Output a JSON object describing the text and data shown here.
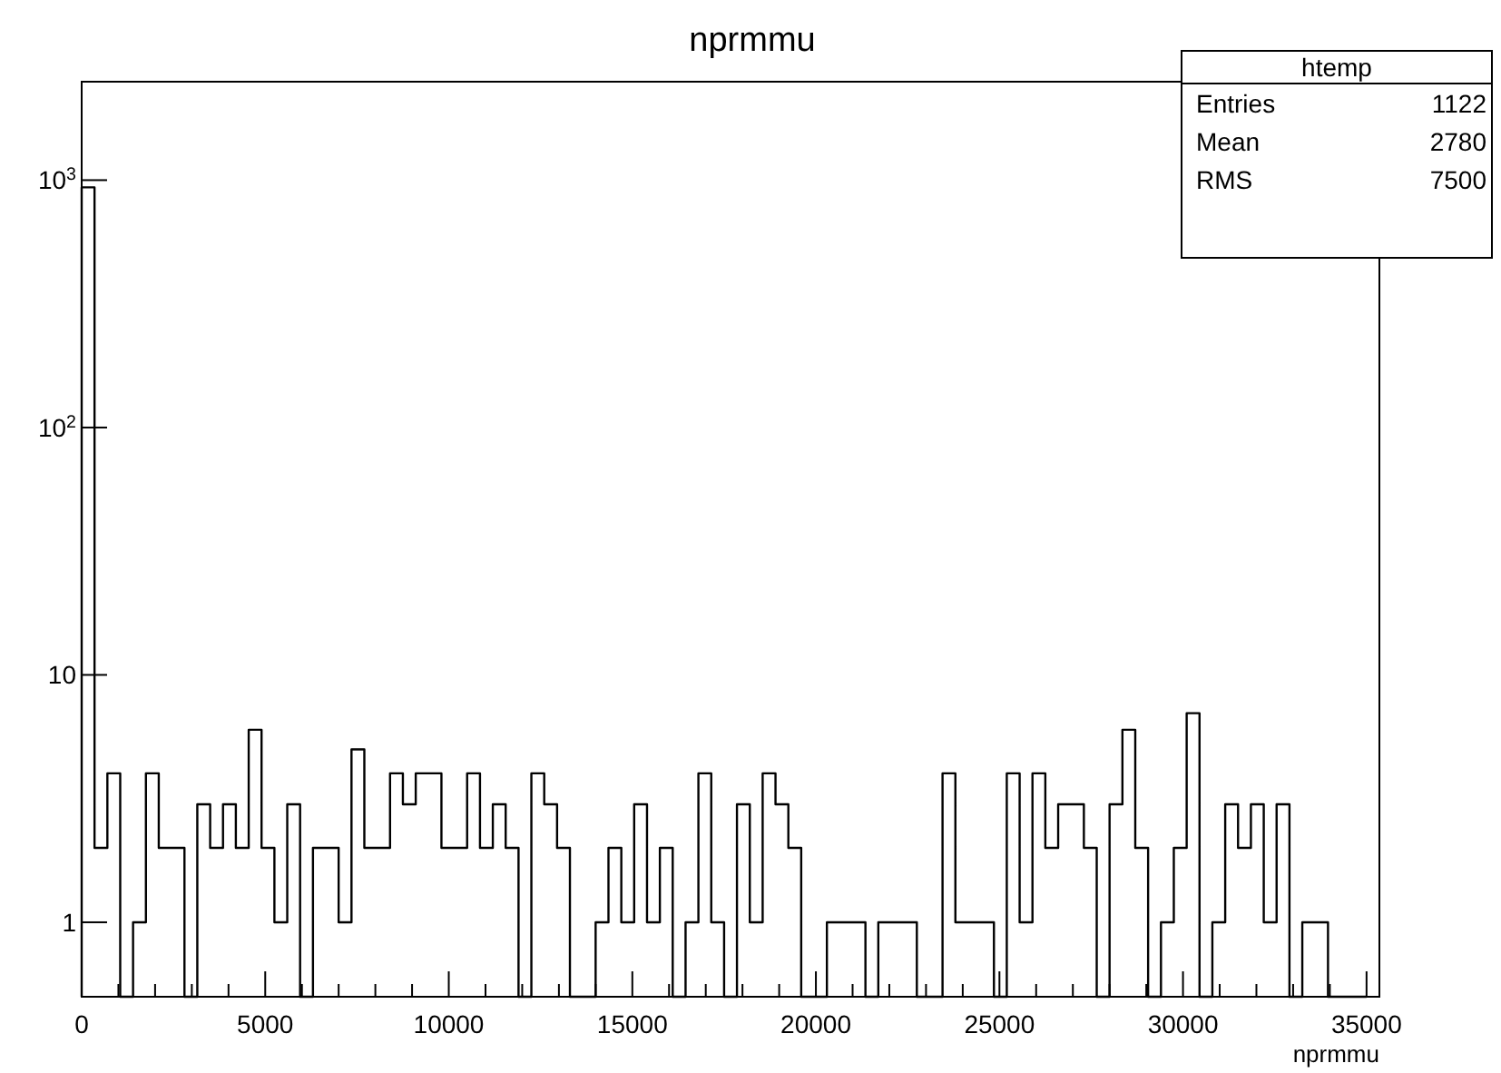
{
  "chart_data": {
    "type": "histogram",
    "title": "nprmmu",
    "xlabel": "nprmmu",
    "log": "y",
    "grid": false,
    "color": "#000000",
    "bins": [
      0,
      350,
      700,
      1050,
      1400,
      1750,
      2100,
      2450,
      2800,
      3150,
      3500,
      3850,
      4200,
      4550,
      4900,
      5250,
      5600,
      5950,
      6300,
      6650,
      7000,
      7350,
      7700,
      8050,
      8400,
      8750,
      9100,
      9450,
      9800,
      10150,
      10500,
      10850,
      11200,
      11550,
      11900,
      12250,
      12600,
      12950,
      13300,
      13650,
      14000,
      14350,
      14700,
      15050,
      15400,
      15750,
      16100,
      16450,
      16800,
      17150,
      17500,
      17850,
      18200,
      18550,
      18900,
      19250,
      19600,
      19950,
      20300,
      20650,
      21000,
      21350,
      21700,
      22050,
      22400,
      22750,
      23100,
      23450,
      23800,
      24150,
      24500,
      24850,
      25200,
      25550,
      25900,
      26250,
      26600,
      26950,
      27300,
      27650,
      28000,
      28350,
      28700,
      29050,
      29400,
      29750,
      30100,
      30450,
      30800,
      31150,
      31500,
      31850,
      32200,
      32550,
      32900,
      33250,
      33600,
      33950,
      34300,
      34650,
      35000
    ],
    "values": [
      935,
      2,
      4,
      null,
      1,
      4,
      2,
      2,
      null,
      3,
      2,
      3,
      2,
      6,
      2,
      1,
      3,
      null,
      2,
      2,
      1,
      5,
      2,
      2,
      4,
      3,
      4,
      4,
      2,
      2,
      4,
      2,
      3,
      2,
      null,
      4,
      3,
      2,
      null,
      null,
      1,
      2,
      1,
      3,
      1,
      2,
      null,
      1,
      4,
      1,
      null,
      3,
      1,
      4,
      3,
      2,
      null,
      null,
      1,
      1,
      1,
      null,
      1,
      1,
      1,
      null,
      null,
      4,
      1,
      1,
      1,
      null,
      4,
      1,
      4,
      2,
      3,
      3,
      2,
      null,
      3,
      6,
      2,
      null,
      1,
      2,
      7,
      null,
      1,
      3,
      2,
      3,
      1,
      3,
      null,
      1,
      1,
      null,
      null,
      null
    ],
    "xlim": [
      0,
      35350
    ],
    "ylim": [
      0.5,
      2500
    ],
    "xticks": [
      0,
      {
        "value": 1000,
        "label": null
      },
      {
        "value": 2000,
        "label": null
      },
      {
        "value": 3000,
        "label": null
      },
      {
        "value": 4000,
        "label": null
      },
      5000,
      {
        "value": 6000,
        "label": null
      },
      {
        "value": 7000,
        "label": null
      },
      {
        "value": 8000,
        "label": null
      },
      {
        "value": 9000,
        "label": null
      },
      10000,
      {
        "value": 11000,
        "label": null
      },
      {
        "value": 12000,
        "label": null
      },
      {
        "value": 13000,
        "label": null
      },
      {
        "value": 14000,
        "label": null
      },
      15000,
      {
        "value": 16000,
        "label": null
      },
      {
        "value": 17000,
        "label": null
      },
      {
        "value": 18000,
        "label": null
      },
      {
        "value": 19000,
        "label": null
      },
      20000,
      {
        "value": 21000,
        "label": null
      },
      {
        "value": 22000,
        "label": null
      },
      {
        "value": 23000,
        "label": null
      },
      {
        "value": 24000,
        "label": null
      },
      25000,
      {
        "value": 26000,
        "label": null
      },
      {
        "value": 27000,
        "label": null
      },
      {
        "value": 28000,
        "label": null
      },
      {
        "value": 29000,
        "label": null
      },
      30000,
      {
        "value": 31000,
        "label": null
      },
      {
        "value": 32000,
        "label": null
      },
      {
        "value": 33000,
        "label": null
      },
      {
        "value": 34000,
        "label": null
      },
      35000
    ],
    "yticks": [
      1,
      10,
      {
        "value": 100,
        "label": "10$^{2}$"
      },
      {
        "value": 1000,
        "label": "10$^{3}$"
      }
    ],
    "annotations": [
      "htemp",
      "Entries",
      "1122",
      "Mean",
      "2780",
      "RMS",
      "7500"
    ]
  }
}
